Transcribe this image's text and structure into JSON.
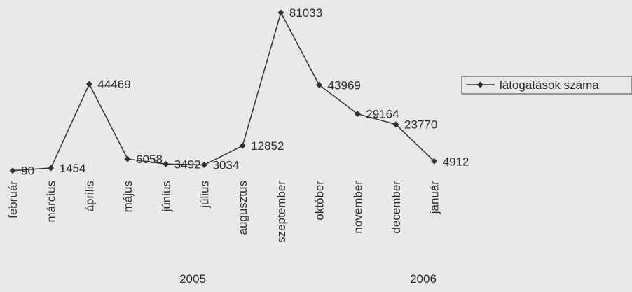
{
  "chart_data": {
    "type": "line",
    "title": "",
    "xlabel": "",
    "ylabel": "",
    "categories": [
      "február",
      "március",
      "április",
      "május",
      "június",
      "július",
      "augusztus",
      "szeptember",
      "október",
      "november",
      "december",
      "január"
    ],
    "year_groups": [
      {
        "label": "2005",
        "from": 0,
        "to": 10
      },
      {
        "label": "2006",
        "from": 11,
        "to": 11
      }
    ],
    "series": [
      {
        "name": "látogatások száma",
        "values": [
          90,
          1454,
          44469,
          6058,
          3492,
          3034,
          12852,
          81033,
          43969,
          29164,
          23770,
          4912
        ],
        "color": "#333333"
      }
    ],
    "ylim": [
      0,
      81033
    ],
    "grid": false,
    "legend": "right"
  }
}
